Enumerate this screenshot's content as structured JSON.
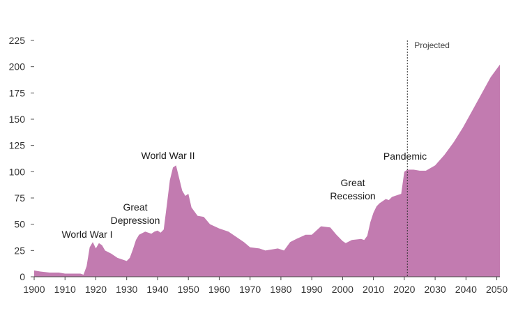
{
  "chart_data": {
    "type": "area",
    "title": "",
    "xlabel": "",
    "ylabel": "",
    "xlim": [
      1900,
      2051
    ],
    "ylim": [
      0,
      225
    ],
    "x_ticks": [
      "1900",
      "1910",
      "1920",
      "1930",
      "1940",
      "1950",
      "1960",
      "1970",
      "1980",
      "1990",
      "2000",
      "2010",
      "2020",
      "2030",
      "2040",
      "2050"
    ],
    "y_ticks": [
      "0",
      "25",
      "50",
      "75",
      "100",
      "125",
      "150",
      "175",
      "200",
      "225"
    ],
    "grid": false,
    "legend": "none",
    "color": "#c27bb0",
    "projection_start": 2021,
    "projection_label": "Projected",
    "annotations": [
      {
        "lines": [
          "World War I"
        ],
        "x": 1918
      },
      {
        "lines": [
          "Great",
          "Depression"
        ],
        "x": 1933
      },
      {
        "lines": [
          "World War II"
        ],
        "x": 1946
      },
      {
        "lines": [
          "Great",
          "Recession"
        ],
        "x": 2009
      },
      {
        "lines": [
          "Pandemic"
        ],
        "x": 2020
      }
    ],
    "series": [
      {
        "x": [
          1900,
          1902,
          1905,
          1908,
          1910,
          1912,
          1915,
          1916,
          1917,
          1918,
          1919,
          1920,
          1921,
          1922,
          1923,
          1925,
          1927,
          1929,
          1930,
          1931,
          1932,
          1933,
          1934,
          1936,
          1937,
          1938,
          1939,
          1940,
          1941,
          1942,
          1943,
          1944,
          1945,
          1946,
          1947,
          1948,
          1949,
          1950,
          1951,
          1952,
          1953,
          1955,
          1957,
          1960,
          1963,
          1966,
          1968,
          1970,
          1973,
          1975,
          1977,
          1979,
          1981,
          1983,
          1985,
          1988,
          1990,
          1993,
          1996,
          1998,
          2000,
          2001,
          2003,
          2006,
          2007,
          2008,
          2009,
          2010,
          2011,
          2012,
          2013,
          2014,
          2015,
          2016,
          2017,
          2018,
          2019,
          2020,
          2021,
          2023,
          2025,
          2027,
          2030,
          2033,
          2036,
          2039,
          2042,
          2045,
          2048,
          2051
        ],
        "values": [
          6,
          5,
          4,
          4,
          3,
          3,
          3,
          2,
          10,
          28,
          33,
          27,
          32,
          30,
          25,
          22,
          18,
          16,
          15,
          18,
          26,
          35,
          40,
          43,
          42,
          41,
          43,
          44,
          42,
          45,
          68,
          92,
          104,
          106,
          94,
          82,
          77,
          79,
          66,
          62,
          58,
          57,
          50,
          46,
          43,
          37,
          33,
          28,
          27,
          25,
          26,
          27,
          25,
          33,
          36,
          40,
          40,
          48,
          47,
          40,
          34,
          32,
          35,
          36,
          35,
          39,
          52,
          61,
          67,
          70,
          72,
          74,
          73,
          76,
          77,
          78,
          79,
          100,
          102,
          102,
          101,
          101,
          106,
          116,
          128,
          142,
          158,
          174,
          190,
          202
        ]
      }
    ]
  }
}
